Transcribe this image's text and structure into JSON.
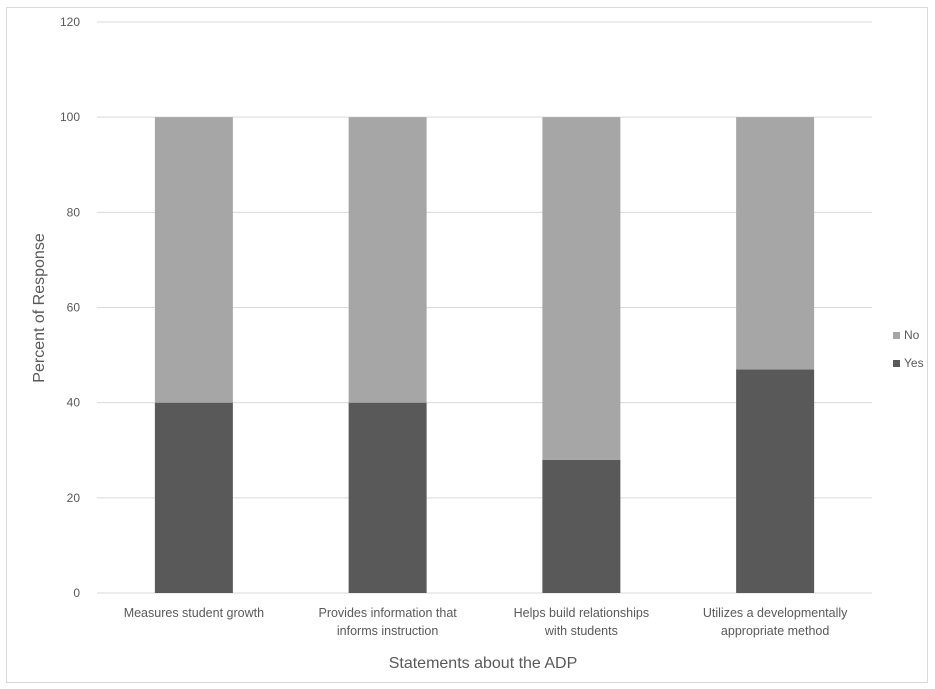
{
  "chart_data": {
    "type": "bar",
    "stacked": true,
    "title": "",
    "xlabel": "Statements about the ADP",
    "ylabel": "Percent of Response",
    "ylim": [
      0,
      120
    ],
    "yticks": [
      "0",
      "20",
      "40",
      "60",
      "80",
      "100",
      "120"
    ],
    "grid": true,
    "legend_position": "right",
    "categories": [
      [
        "Measures student growth"
      ],
      [
        "Provides information that",
        "informs instruction"
      ],
      [
        "Helps build relationships",
        "with students"
      ],
      [
        "Utilizes a developmentally",
        "appropriate method"
      ]
    ],
    "series": [
      {
        "name": "Yes",
        "values": [
          40,
          40,
          28,
          47
        ],
        "color": "#595959"
      },
      {
        "name": "No",
        "values": [
          60,
          60,
          72,
          53
        ],
        "color": "#a6a6a6"
      }
    ]
  }
}
